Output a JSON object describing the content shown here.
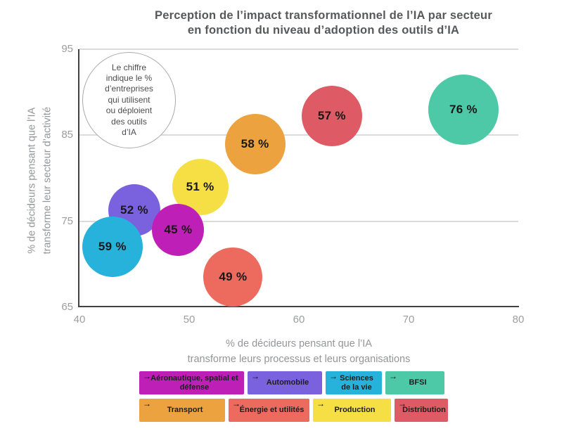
{
  "header": {
    "title_line1": "Perception de l’impact transformationnel de l’IA par secteur",
    "title_line2": "en fonction du niveau d’adoption des outils d’IA"
  },
  "axes": {
    "x_label_line1": "% de décideurs pensant que l’IA",
    "x_label_line2": "transforme leurs processus et leurs organisations",
    "y_label_line1": "% de décideurs pensant que l’IA",
    "y_label_line2": "transforme leur secteur d’activité"
  },
  "annotation": {
    "lines": [
      "Le chiffre",
      "indique le %",
      "d’entreprises",
      "qui utilisent",
      "ou déploient",
      "des outils",
      "d’IA"
    ]
  },
  "legend": {
    "rows": [
      [
        {
          "label": "Aéronautique, spatial et défense",
          "color": "#BE1FB6"
        },
        {
          "label": "Automobile",
          "color": "#7A62DF"
        },
        {
          "label": "Sciences de la vie",
          "color": "#27B2DB"
        },
        {
          "label": "BFSI",
          "color": "#4EC9A8"
        }
      ],
      [
        {
          "label": "Transport",
          "color": "#EBA23F"
        },
        {
          "label": "Énergie et utilités",
          "color": "#ED6A5E"
        },
        {
          "label": "Production",
          "color": "#F6DF45"
        },
        {
          "label": "Distribution",
          "color": "#DE5A64"
        }
      ]
    ],
    "arrow_icon": "→"
  },
  "chart_data": {
    "type": "scatter",
    "title": "Perception de l’impact transformationnel de l’IA par secteur en fonction du niveau d’adoption des outils d’IA",
    "xlabel": "% de décideurs pensant que l’IA transforme leurs processus et leurs organisations",
    "ylabel": "% de décideurs pensant que l’IA transforme leur secteur d’activité",
    "xlim": [
      40,
      80
    ],
    "ylim": [
      65,
      95
    ],
    "x_ticks": [
      40,
      50,
      60,
      70,
      80
    ],
    "y_ticks": [
      95,
      85,
      75,
      65
    ],
    "grid": "horizontal-only",
    "legend_position": "bottom",
    "bubble_note": "Le chiffre indique le % d’entreprises qui utilisent ou déploient des outils d’IA",
    "points": [
      {
        "sector": "Automobile",
        "x": 45,
        "y": 76.3,
        "adoption_pct": 52,
        "label": "52 %",
        "color": "#7A62DF",
        "radius_px": 37
      },
      {
        "sector": "Production",
        "x": 51,
        "y": 79,
        "adoption_pct": 51,
        "label": "51 %",
        "color": "#F6DF45",
        "radius_px": 40
      },
      {
        "sector": "Aéronautique, spatial et défense",
        "x": 49,
        "y": 74,
        "adoption_pct": 45,
        "label": "45 %",
        "color": "#BE1FB6",
        "radius_px": 37
      },
      {
        "sector": "Sciences de la vie",
        "x": 43,
        "y": 72,
        "adoption_pct": 59,
        "label": "59 %",
        "color": "#27B2DB",
        "radius_px": 43
      },
      {
        "sector": "Transport",
        "x": 56,
        "y": 84,
        "adoption_pct": 58,
        "label": "58 %",
        "color": "#EBA23F",
        "radius_px": 43
      },
      {
        "sector": "Distribution",
        "x": 63,
        "y": 87.2,
        "adoption_pct": 57,
        "label": "57 %",
        "color": "#DE5A64",
        "radius_px": 43
      },
      {
        "sector": "BFSI",
        "x": 75,
        "y": 88,
        "adoption_pct": 76,
        "label": "76 %",
        "color": "#4EC9A8",
        "radius_px": 50
      },
      {
        "sector": "Énergie et utilités",
        "x": 54,
        "y": 68.5,
        "adoption_pct": 49,
        "label": "49 %",
        "color": "#ED6A5E",
        "radius_px": 42
      }
    ]
  }
}
